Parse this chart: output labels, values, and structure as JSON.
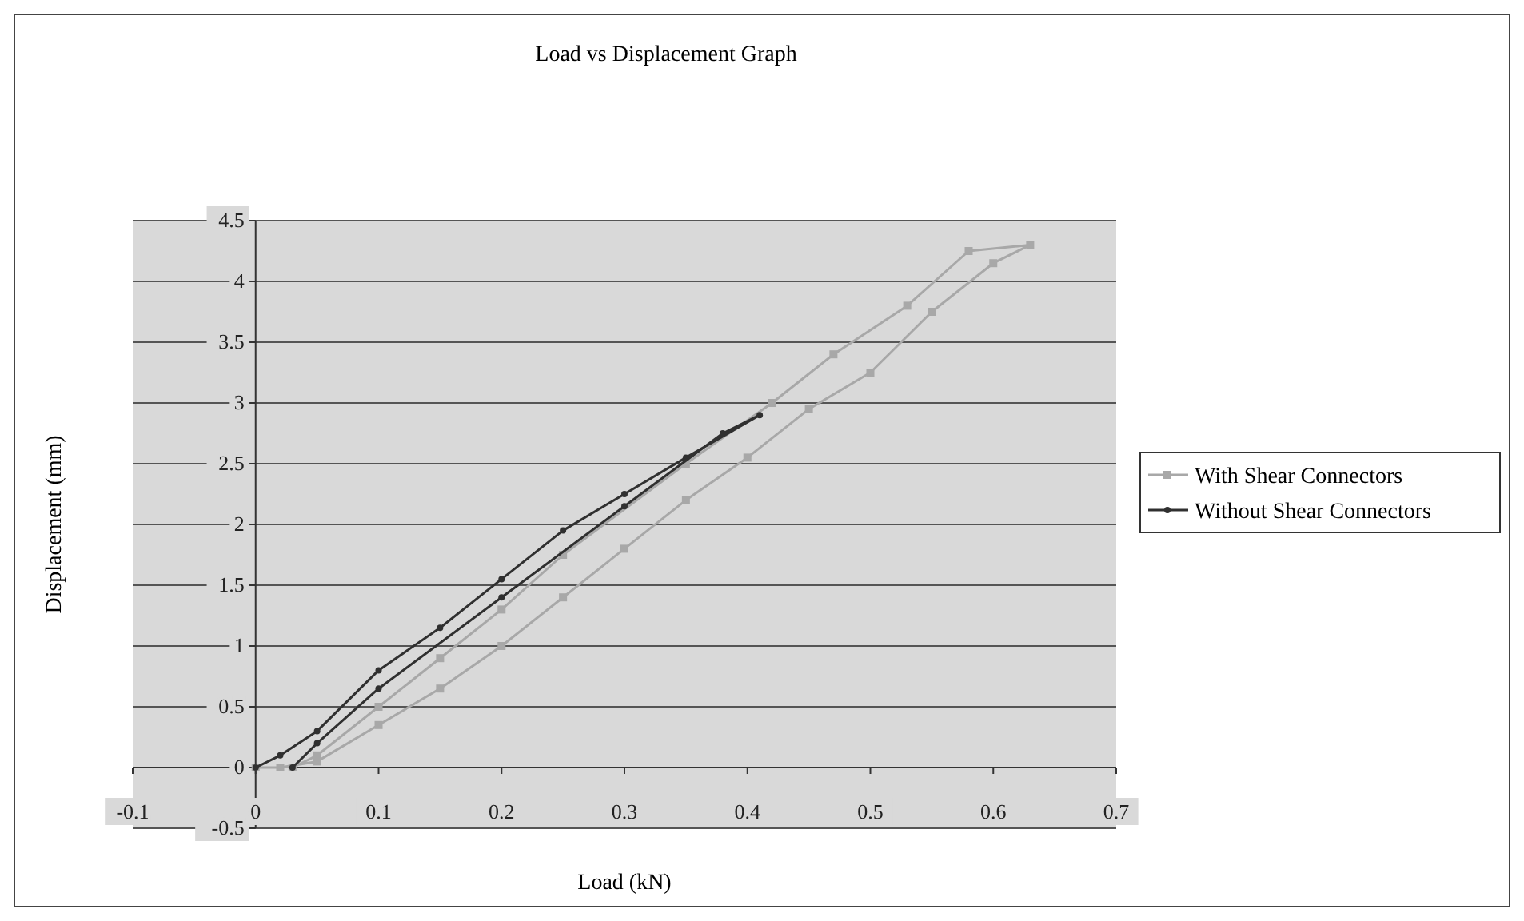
{
  "chart_data": {
    "type": "line",
    "title": "Load vs Displacement Graph",
    "xlabel": "Load (kN)",
    "ylabel": "Displacement (mm)",
    "xlim": [
      -0.1,
      0.7
    ],
    "xticks": [
      -0.1,
      0,
      0.1,
      0.2,
      0.3,
      0.4,
      0.5,
      0.6,
      0.7
    ],
    "ylim": [
      -0.5,
      4.5
    ],
    "yticks": [
      -0.5,
      0,
      0.5,
      1,
      1.5,
      2,
      2.5,
      3,
      3.5,
      4,
      4.5
    ],
    "grid": "y",
    "legend": "right",
    "series": [
      {
        "name": "With Shear Connectors",
        "color": "#a8a8a8",
        "marker": "square",
        "x": [
          0,
          0.02,
          0.05,
          0.1,
          0.15,
          0.2,
          0.25,
          0.3,
          0.35,
          0.4,
          0.45,
          0.5,
          0.55,
          0.6,
          0.63,
          0.58,
          0.53,
          0.47,
          0.42,
          0.35,
          0.25,
          0.2,
          0.15,
          0.1,
          0.05,
          0.03
        ],
        "values": [
          0,
          0,
          0.05,
          0.35,
          0.65,
          1.0,
          1.4,
          1.8,
          2.2,
          2.55,
          2.95,
          3.25,
          3.75,
          4.15,
          4.3,
          4.25,
          3.8,
          3.4,
          3.0,
          2.5,
          1.75,
          1.3,
          0.9,
          0.5,
          0.1,
          0
        ]
      },
      {
        "name": "Without Shear Connectors",
        "color": "#303030",
        "marker": "circle",
        "x": [
          0,
          0.02,
          0.05,
          0.1,
          0.15,
          0.2,
          0.25,
          0.3,
          0.35,
          0.41,
          0.38,
          0.3,
          0.2,
          0.1,
          0.05,
          0.03
        ],
        "values": [
          0,
          0.1,
          0.3,
          0.8,
          1.15,
          1.55,
          1.95,
          2.25,
          2.55,
          2.9,
          2.75,
          2.15,
          1.4,
          0.65,
          0.2,
          0
        ]
      }
    ]
  }
}
